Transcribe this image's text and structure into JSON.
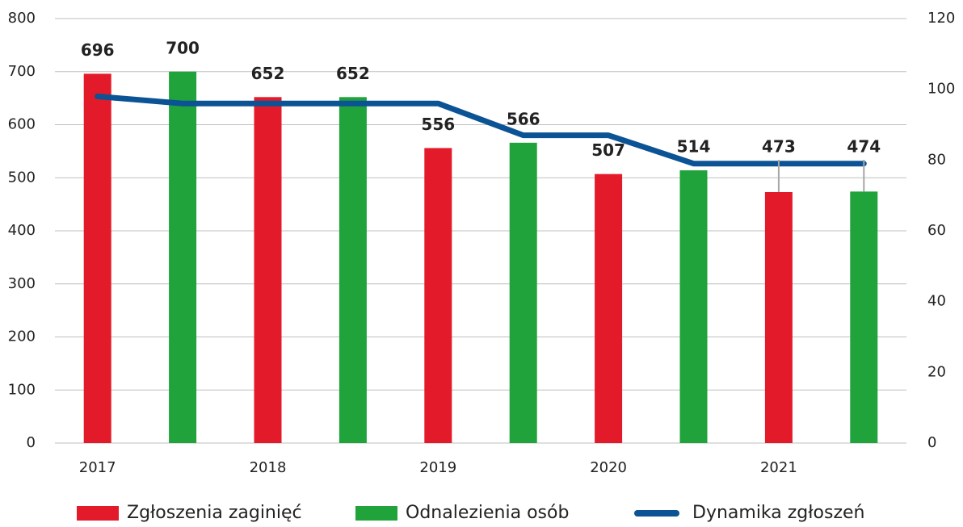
{
  "chart_data": {
    "type": "bar",
    "categories": [
      "2017",
      null,
      "2018",
      null,
      "2019",
      null,
      "2020",
      null,
      "2021",
      null
    ],
    "series": [
      {
        "name": "Zgłoszenia zaginięć",
        "color": "#e31a2a",
        "values": [
          696,
          null,
          652,
          null,
          556,
          null,
          507,
          null,
          473,
          null
        ]
      },
      {
        "name": "Odnalezienia osób",
        "color": "#1fa33a",
        "values": [
          null,
          700,
          null,
          652,
          null,
          566,
          null,
          514,
          null,
          474
        ]
      },
      {
        "name": "Dynamika zgłoszeń",
        "color": "#0b5394",
        "type": "line",
        "axis": "y2",
        "values": [
          98,
          96,
          96,
          96,
          96,
          87,
          87,
          79,
          79,
          79
        ]
      }
    ],
    "ylim": [
      0,
      800
    ],
    "yticks": [
      0,
      100,
      200,
      300,
      400,
      500,
      600,
      700,
      800
    ],
    "y2lim": [
      0,
      120
    ],
    "y2ticks": [
      0,
      20,
      40,
      60,
      80,
      100,
      120
    ],
    "grid": true,
    "legend": "bottom"
  }
}
